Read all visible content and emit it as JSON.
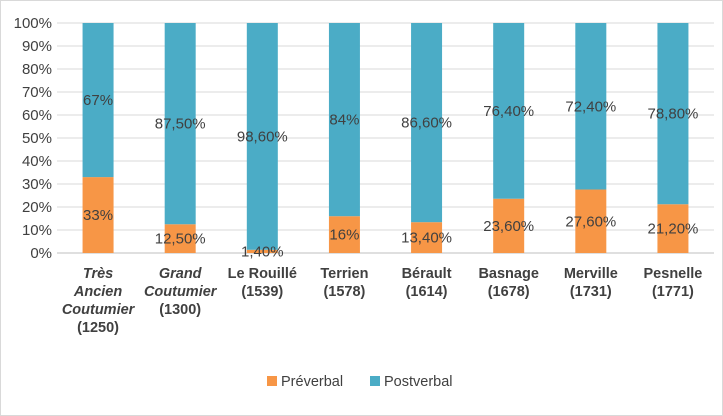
{
  "chart_data": {
    "type": "bar",
    "stacked": true,
    "categories": [
      {
        "lines": [
          "Très",
          "Ancien",
          "Coutumier",
          "(1250)"
        ],
        "italic_lines": 3
      },
      {
        "lines": [
          "Grand",
          "Coutumier",
          "(1300)"
        ],
        "italic_lines": 2
      },
      {
        "lines": [
          "Le Rouillé",
          "(1539)"
        ],
        "italic_lines": 0
      },
      {
        "lines": [
          "Terrien",
          "(1578)"
        ],
        "italic_lines": 0
      },
      {
        "lines": [
          "Bérault",
          "(1614)"
        ],
        "italic_lines": 0
      },
      {
        "lines": [
          "Basnage",
          "(1678)"
        ],
        "italic_lines": 0
      },
      {
        "lines": [
          "Merville",
          "(1731)"
        ],
        "italic_lines": 0
      },
      {
        "lines": [
          "Pesnelle",
          "(1771)"
        ],
        "italic_lines": 0
      }
    ],
    "series": [
      {
        "name": "Préverbal",
        "color": "#f79646",
        "values": [
          33,
          12.5,
          1.4,
          16,
          13.4,
          23.6,
          27.6,
          21.2
        ],
        "labels": [
          "33%",
          "12,50%",
          "1,40%",
          "16%",
          "13,40%",
          "23,60%",
          "27,60%",
          "21,20%"
        ]
      },
      {
        "name": "Postverbal",
        "color": "#4bacc6",
        "values": [
          67,
          87.5,
          98.6,
          84,
          86.6,
          76.4,
          72.4,
          78.8
        ],
        "labels": [
          "67%",
          "87,50%",
          "98,60%",
          "84%",
          "86,60%",
          "76,40%",
          "72,40%",
          "78,80%"
        ]
      }
    ],
    "y_ticks": [
      "0%",
      "10%",
      "20%",
      "30%",
      "40%",
      "50%",
      "60%",
      "70%",
      "80%",
      "90%",
      "100%"
    ],
    "ylim": [
      0,
      100
    ],
    "grid": true,
    "legend_position": "bottom"
  }
}
